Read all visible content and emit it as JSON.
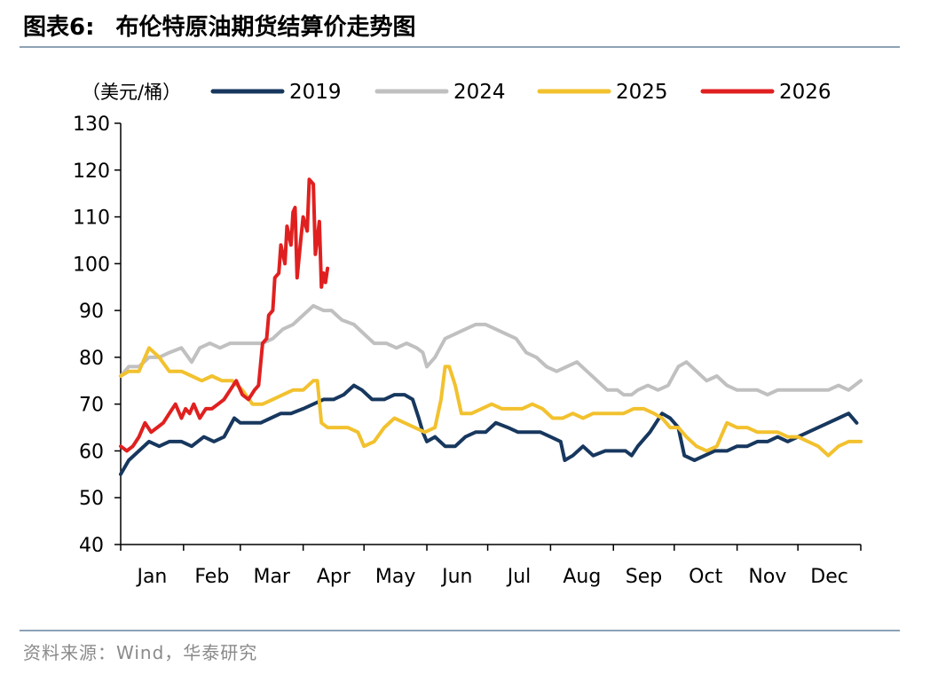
{
  "header": {
    "label": "图表6:",
    "title": "布伦特原油期货结算价走势图"
  },
  "source": "资料来源：Wind，华泰研究",
  "chart_data": {
    "type": "line",
    "unit_label": "（美元/桶）",
    "ylim": [
      40,
      130
    ],
    "yticks": [
      40,
      50,
      60,
      70,
      80,
      90,
      100,
      110,
      120,
      130
    ],
    "months": [
      "Jan",
      "Feb",
      "Mar",
      "Apr",
      "May",
      "Jun",
      "Jul",
      "Aug",
      "Sep",
      "Oct",
      "Nov",
      "Dec"
    ],
    "x_unit": "day of year",
    "xlim": [
      1,
      366
    ],
    "legend_position": "top",
    "grid": false,
    "series": [
      {
        "name": "2019",
        "color": "#17375e",
        "x": [
          1,
          5,
          10,
          15,
          20,
          25,
          31,
          36,
          42,
          47,
          52,
          57,
          60,
          64,
          70,
          75,
          80,
          85,
          91,
          96,
          101,
          106,
          111,
          116,
          120,
          125,
          131,
          136,
          141,
          145,
          148,
          150,
          152,
          156,
          161,
          166,
          171,
          176,
          181,
          186,
          192,
          197,
          203,
          208,
          213,
          218,
          220,
          224,
          229,
          234,
          240,
          245,
          250,
          253,
          256,
          258,
          262,
          268,
          272,
          276,
          279,
          284,
          289,
          294,
          300,
          305,
          310,
          315,
          320,
          325,
          330,
          335,
          340,
          345,
          350,
          355,
          360,
          364
        ],
        "y": [
          55,
          58,
          60,
          62,
          61,
          62,
          62,
          61,
          63,
          62,
          63,
          67,
          66,
          66,
          66,
          67,
          68,
          68,
          69,
          70,
          71,
          71,
          72,
          74,
          73,
          71,
          71,
          72,
          72,
          71,
          67,
          64,
          62,
          63,
          61,
          61,
          63,
          64,
          64,
          66,
          65,
          64,
          64,
          64,
          63,
          62,
          58,
          59,
          61,
          59,
          60,
          60,
          60,
          59,
          61,
          62,
          64,
          68,
          67,
          65,
          59,
          58,
          59,
          60,
          60,
          61,
          61,
          62,
          62,
          63,
          62,
          63,
          64,
          65,
          66,
          67,
          68,
          66
        ]
      },
      {
        "name": "2024",
        "color": "#c0c0c0",
        "x": [
          1,
          5,
          10,
          15,
          20,
          25,
          31,
          36,
          40,
          45,
          50,
          55,
          60,
          66,
          71,
          76,
          81,
          86,
          91,
          96,
          101,
          105,
          110,
          116,
          121,
          126,
          132,
          137,
          142,
          147,
          150,
          152,
          156,
          161,
          166,
          171,
          176,
          181,
          186,
          191,
          196,
          201,
          206,
          211,
          216,
          221,
          226,
          231,
          236,
          241,
          246,
          249,
          253,
          256,
          261,
          266,
          271,
          276,
          280,
          285,
          290,
          295,
          300,
          305,
          310,
          315,
          320,
          325,
          330,
          335,
          340,
          345,
          350,
          355,
          360,
          366
        ],
        "y": [
          76,
          78,
          78,
          80,
          80,
          81,
          82,
          79,
          82,
          83,
          82,
          83,
          83,
          83,
          83,
          84,
          86,
          87,
          89,
          91,
          90,
          90,
          88,
          87,
          85,
          83,
          83,
          82,
          83,
          82,
          81,
          78,
          80,
          84,
          85,
          86,
          87,
          87,
          86,
          85,
          84,
          81,
          80,
          78,
          77,
          78,
          79,
          77,
          75,
          73,
          73,
          72,
          72,
          73,
          74,
          73,
          74,
          78,
          79,
          77,
          75,
          76,
          74,
          73,
          73,
          73,
          72,
          73,
          73,
          73,
          73,
          73,
          73,
          74,
          73,
          75
        ]
      },
      {
        "name": "2025",
        "color": "#f2c12e",
        "x": [
          1,
          5,
          10,
          15,
          20,
          25,
          31,
          36,
          41,
          46,
          51,
          56,
          61,
          66,
          71,
          76,
          81,
          86,
          91,
          96,
          98,
          100,
          103,
          108,
          113,
          118,
          121,
          126,
          131,
          136,
          141,
          146,
          151,
          156,
          159,
          161,
          163,
          166,
          169,
          174,
          179,
          184,
          189,
          194,
          199,
          204,
          209,
          214,
          219,
          224,
          229,
          234,
          239,
          244,
          249,
          254,
          259,
          264,
          268,
          272,
          276,
          280,
          285,
          290,
          295,
          300,
          305,
          310,
          315,
          320,
          325,
          330,
          335,
          340,
          345,
          350,
          355,
          360,
          366
        ],
        "y": [
          76,
          77,
          77,
          82,
          80,
          77,
          77,
          76,
          75,
          76,
          75,
          75,
          73,
          70,
          70,
          71,
          72,
          73,
          73,
          75,
          75,
          66,
          65,
          65,
          65,
          64,
          61,
          62,
          65,
          67,
          66,
          65,
          64,
          65,
          71,
          78,
          78,
          74,
          68,
          68,
          69,
          70,
          69,
          69,
          69,
          70,
          69,
          67,
          67,
          68,
          67,
          68,
          68,
          68,
          68,
          69,
          69,
          68,
          67,
          65,
          65,
          63,
          61,
          60,
          61,
          66,
          65,
          65,
          64,
          64,
          64,
          63,
          63,
          62,
          61,
          59,
          61,
          62,
          62
        ]
      },
      {
        "name": "2026",
        "color": "#e02020",
        "x": [
          1,
          4,
          7,
          10,
          13,
          16,
          19,
          22,
          25,
          28,
          31,
          33,
          35,
          37,
          40,
          43,
          46,
          49,
          52,
          55,
          58,
          61,
          64,
          67,
          69,
          71,
          73,
          74,
          76,
          77,
          79,
          80,
          82,
          83,
          85,
          86,
          87,
          88,
          90,
          91,
          93,
          94,
          96,
          97,
          99,
          100,
          101,
          102,
          103
        ],
        "y": [
          61,
          60,
          61,
          63,
          66,
          64,
          65,
          66,
          68,
          70,
          67,
          69,
          68,
          70,
          67,
          69,
          69,
          70,
          71,
          73,
          75,
          72,
          71,
          73,
          74,
          83,
          84,
          89,
          90,
          97,
          98,
          104,
          100,
          108,
          104,
          111,
          112,
          97,
          106,
          110,
          107,
          118,
          117,
          102,
          109,
          95,
          98,
          96,
          99
        ]
      }
    ]
  }
}
